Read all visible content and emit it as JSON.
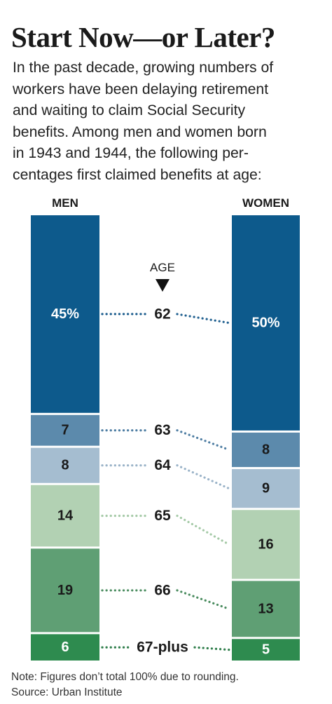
{
  "title": "Start Now—or Later?",
  "intro_lines": [
    "In the past decade, growing numbers of",
    "workers have been delaying retirement",
    "and waiting to claim Social Security",
    "benefits. Among men and women born",
    "in 1943 and 1944, the following per-",
    "centages first claimed benefits at age:"
  ],
  "notes": [
    "Note: Figures don’t total 100% due to rounding.",
    "Source: Urban Institute"
  ],
  "chart_data": {
    "type": "bar",
    "stacked": true,
    "orientation": "vertical",
    "unit": "percent",
    "axis_title": "AGE",
    "categories": [
      "62",
      "63",
      "64",
      "65",
      "66",
      "67-plus"
    ],
    "series": [
      {
        "name": "MEN",
        "values": [
          45,
          7,
          8,
          14,
          19,
          6
        ],
        "labels": [
          "45%",
          "7",
          "8",
          "14",
          "19",
          "6"
        ]
      },
      {
        "name": "WOMEN",
        "values": [
          50,
          8,
          9,
          16,
          13,
          5
        ],
        "labels": [
          "50%",
          "8",
          "9",
          "16",
          "13",
          "5"
        ]
      }
    ],
    "colors": [
      "#0d5a8c",
      "#5c8aac",
      "#a5bdd0",
      "#b2d1b3",
      "#5f9f74",
      "#2e8b4f"
    ],
    "label_colors": [
      "#ffffff",
      "#1a1a1a",
      "#1a1a1a",
      "#1a1a1a",
      "#1a1a1a",
      "#ffffff"
    ],
    "connector_colors": [
      "#1f5f8f",
      "#4f7ea3",
      "#9ab3c8",
      "#a4c9a6",
      "#4a8c5f",
      "#2e7d4a"
    ]
  }
}
